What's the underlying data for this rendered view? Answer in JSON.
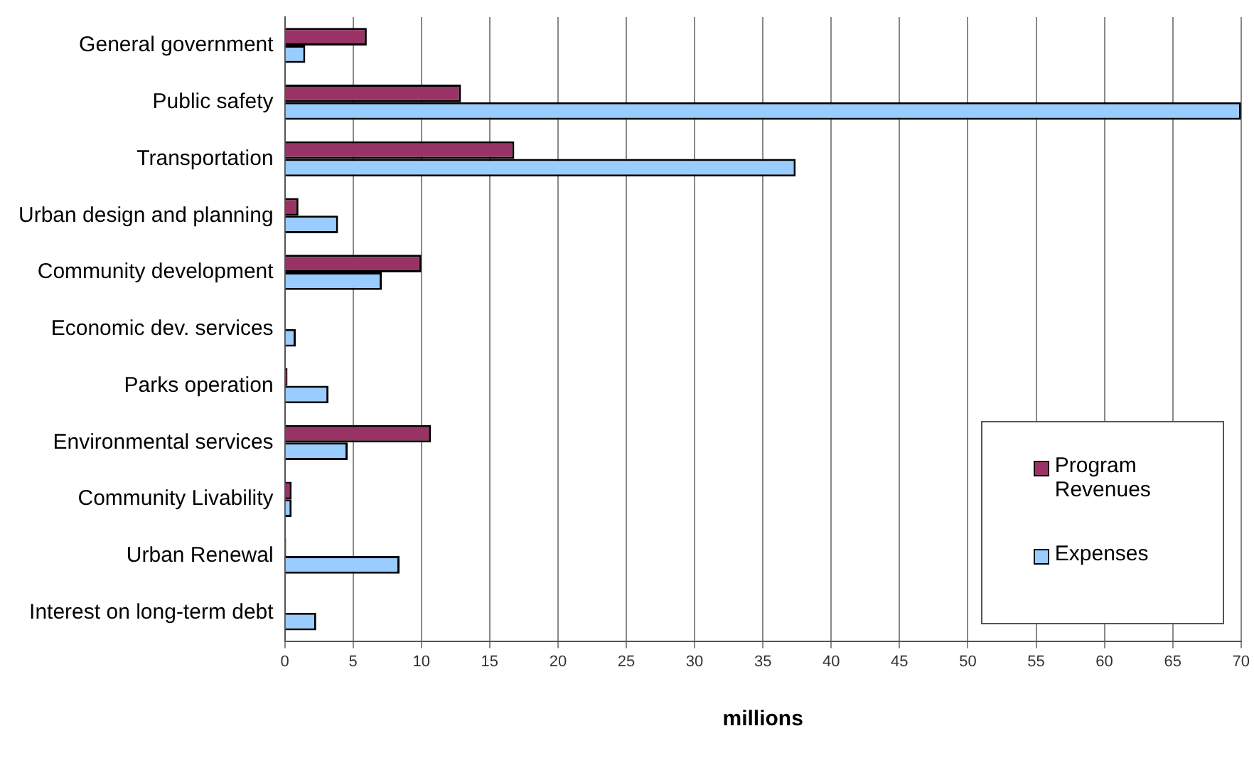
{
  "chart_data": {
    "type": "bar",
    "orientation": "horizontal",
    "xlabel": "millions",
    "categories": [
      "General government",
      "Public safety",
      "Transportation",
      "Urban design and planning",
      "Community development",
      "Economic dev. services",
      "Parks operation",
      "Environmental services",
      "Community Livability",
      "Urban Renewal",
      "Interest on long-term debt"
    ],
    "series": [
      {
        "name": "Program Revenues",
        "color": "#993366",
        "values": [
          6.0,
          12.9,
          16.8,
          1.0,
          10.0,
          0,
          0.2,
          10.7,
          0.5,
          0.1,
          0
        ]
      },
      {
        "name": "Expenses",
        "color": "#99ccff",
        "values": [
          1.5,
          70,
          37.4,
          3.9,
          7.1,
          0.8,
          3.2,
          4.6,
          0.5,
          8.4,
          2.3
        ]
      }
    ],
    "xlim": [
      0,
      70
    ],
    "xticks": [
      0,
      5,
      10,
      15,
      20,
      25,
      30,
      35,
      40,
      45,
      50,
      55,
      60,
      65,
      70
    ],
    "grid": "x",
    "legend": "bottom right"
  }
}
